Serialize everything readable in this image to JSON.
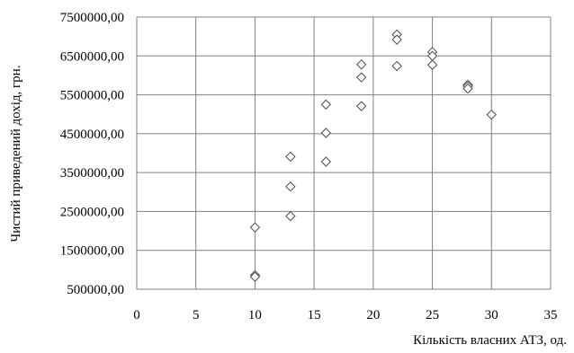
{
  "chart_data": {
    "type": "scatter",
    "title": "",
    "xlabel": "Кількість власних АТЗ, од.",
    "ylabel": "Чистий приведений дохід, грн.",
    "xlim": [
      0,
      35
    ],
    "ylim": [
      500000,
      7500000
    ],
    "x_ticks": [
      0,
      5,
      10,
      15,
      20,
      25,
      30,
      35
    ],
    "x_tick_labels": [
      "0",
      "5",
      "10",
      "15",
      "20",
      "25",
      "30",
      "35"
    ],
    "y_ticks": [
      500000,
      1500000,
      2500000,
      3500000,
      4500000,
      5500000,
      6500000,
      7500000
    ],
    "y_tick_labels": [
      "500000,00",
      "1500000,00",
      "2500000,00",
      "3500000,00",
      "4500000,00",
      "5500000,00",
      "6500000,00",
      "7500000,00"
    ],
    "grid": true,
    "marker": "diamond",
    "series": [
      {
        "points": [
          {
            "x": 10,
            "y": 2090000
          },
          {
            "x": 10,
            "y": 860000
          },
          {
            "x": 10,
            "y": 820000
          },
          {
            "x": 13,
            "y": 3910000
          },
          {
            "x": 13,
            "y": 3140000
          },
          {
            "x": 13,
            "y": 2380000
          },
          {
            "x": 16,
            "y": 5250000
          },
          {
            "x": 16,
            "y": 4520000
          },
          {
            "x": 16,
            "y": 3780000
          },
          {
            "x": 19,
            "y": 6280000
          },
          {
            "x": 19,
            "y": 5950000
          },
          {
            "x": 19,
            "y": 5210000
          },
          {
            "x": 22,
            "y": 7050000
          },
          {
            "x": 22,
            "y": 6920000
          },
          {
            "x": 22,
            "y": 6240000
          },
          {
            "x": 25,
            "y": 6600000
          },
          {
            "x": 25,
            "y": 6500000
          },
          {
            "x": 25,
            "y": 6270000
          },
          {
            "x": 28,
            "y": 5760000
          },
          {
            "x": 28,
            "y": 5720000
          },
          {
            "x": 28,
            "y": 5660000
          },
          {
            "x": 30,
            "y": 4990000
          }
        ]
      }
    ]
  },
  "colors": {
    "background": "#ffffff",
    "grid": "#808080",
    "axis": "#808080",
    "marker_fill": "#ffffff",
    "marker_stroke": "#4d4d4d",
    "text": "#000000"
  }
}
